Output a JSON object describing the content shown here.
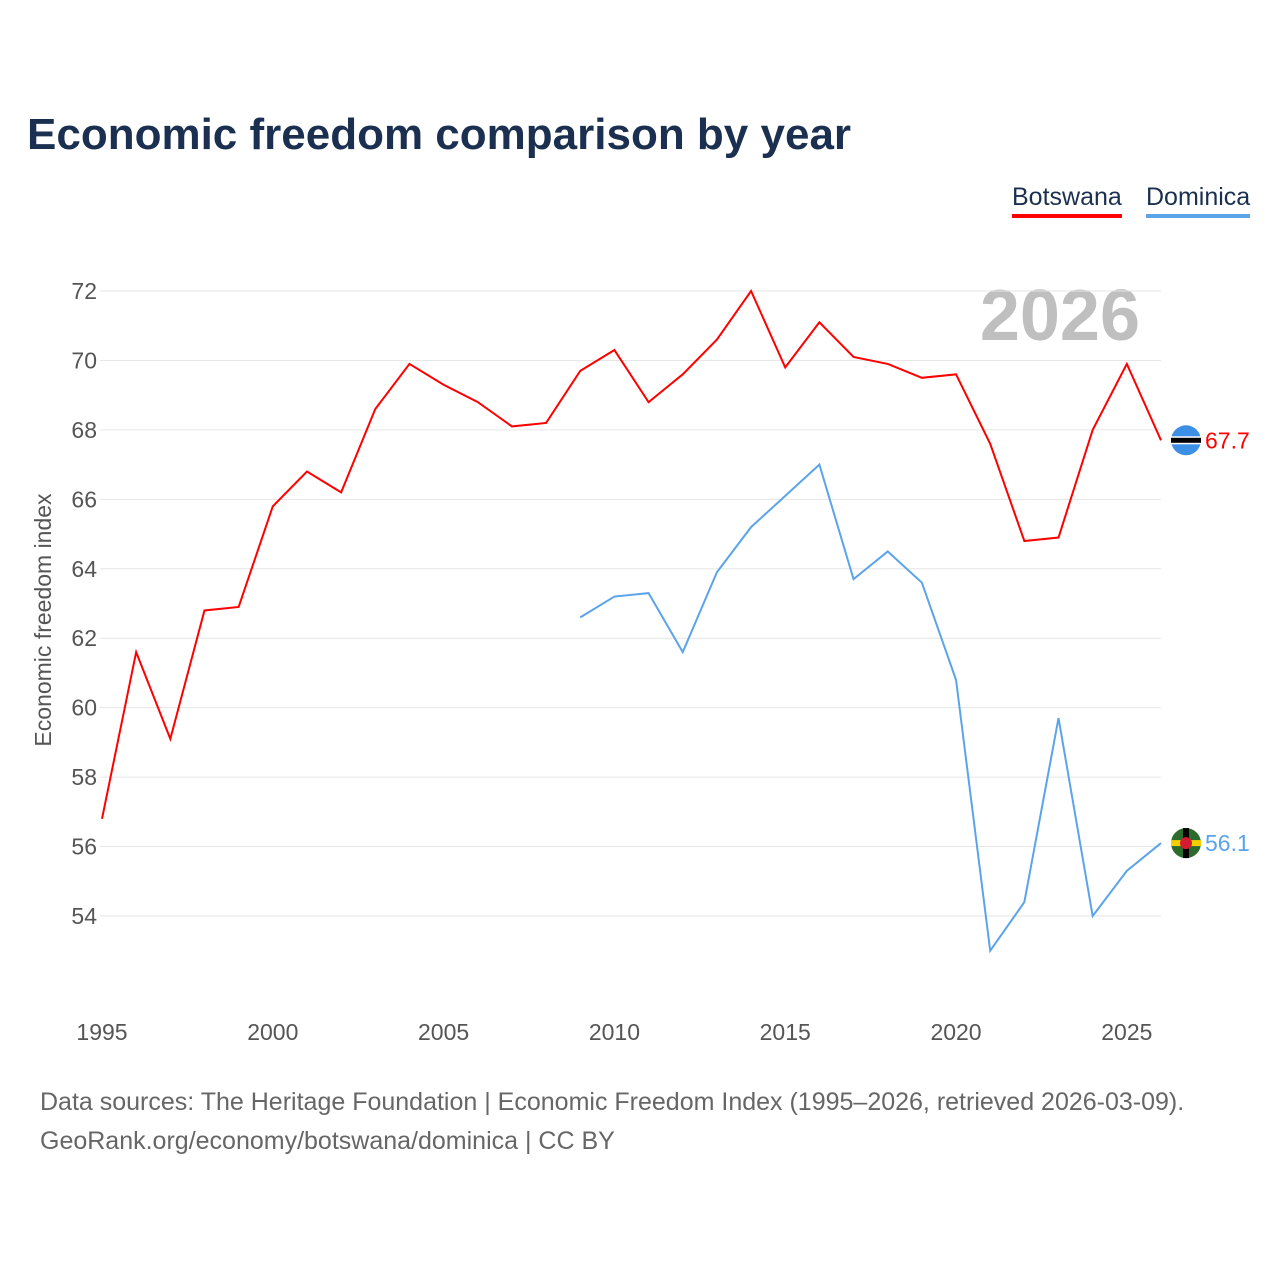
{
  "title": "Economic freedom comparison by year",
  "legend": [
    {
      "label": "Botswana",
      "color": "#ff0000"
    },
    {
      "label": "Dominica",
      "color": "#5ba4ea"
    }
  ],
  "year_watermark": "2026",
  "footer": {
    "line1": "Data sources: The Heritage Foundation | Economic Freedom Index (1995–2026, retrieved 2026-03-09).",
    "line2": "GeoRank.org/economy/botswana/dominica | CC BY"
  },
  "chart_data": {
    "type": "line",
    "title": "Economic freedom comparison by year",
    "xlabel": "",
    "ylabel": "Economic freedom index",
    "xlim": [
      1995,
      2026
    ],
    "ylim": [
      54,
      72
    ],
    "xticks": [
      1995,
      2000,
      2005,
      2010,
      2015,
      2020,
      2025
    ],
    "yticks": [
      54,
      56,
      58,
      60,
      62,
      64,
      66,
      68,
      70,
      72
    ],
    "grid": true,
    "legend_position": "top-right",
    "series": [
      {
        "name": "Botswana",
        "color": "#ff0000",
        "end_label": "67.7",
        "x": [
          1995,
          1996,
          1997,
          1998,
          1999,
          2000,
          2001,
          2002,
          2003,
          2004,
          2005,
          2006,
          2007,
          2008,
          2009,
          2010,
          2011,
          2012,
          2013,
          2014,
          2015,
          2016,
          2017,
          2018,
          2019,
          2020,
          2021,
          2022,
          2023,
          2024,
          2025,
          2026
        ],
        "values": [
          56.8,
          61.6,
          59.1,
          62.8,
          62.9,
          65.8,
          66.8,
          66.2,
          68.6,
          69.9,
          69.3,
          68.8,
          68.1,
          68.2,
          69.7,
          70.3,
          68.8,
          69.6,
          70.6,
          72.0,
          69.8,
          71.1,
          70.1,
          69.9,
          69.5,
          69.6,
          67.6,
          64.8,
          64.9,
          68.0,
          69.9,
          67.7
        ]
      },
      {
        "name": "Dominica",
        "color": "#5ba4ea",
        "end_label": "56.1",
        "x": [
          2009,
          2010,
          2011,
          2012,
          2013,
          2014,
          2015,
          2016,
          2017,
          2018,
          2019,
          2020,
          2021,
          2022,
          2023,
          2024,
          2025,
          2026
        ],
        "values": [
          62.6,
          63.2,
          63.3,
          61.6,
          63.9,
          65.2,
          66.1,
          67.0,
          63.7,
          64.5,
          63.6,
          60.8,
          53.0,
          54.4,
          59.7,
          54.0,
          55.3,
          56.1
        ]
      }
    ]
  }
}
